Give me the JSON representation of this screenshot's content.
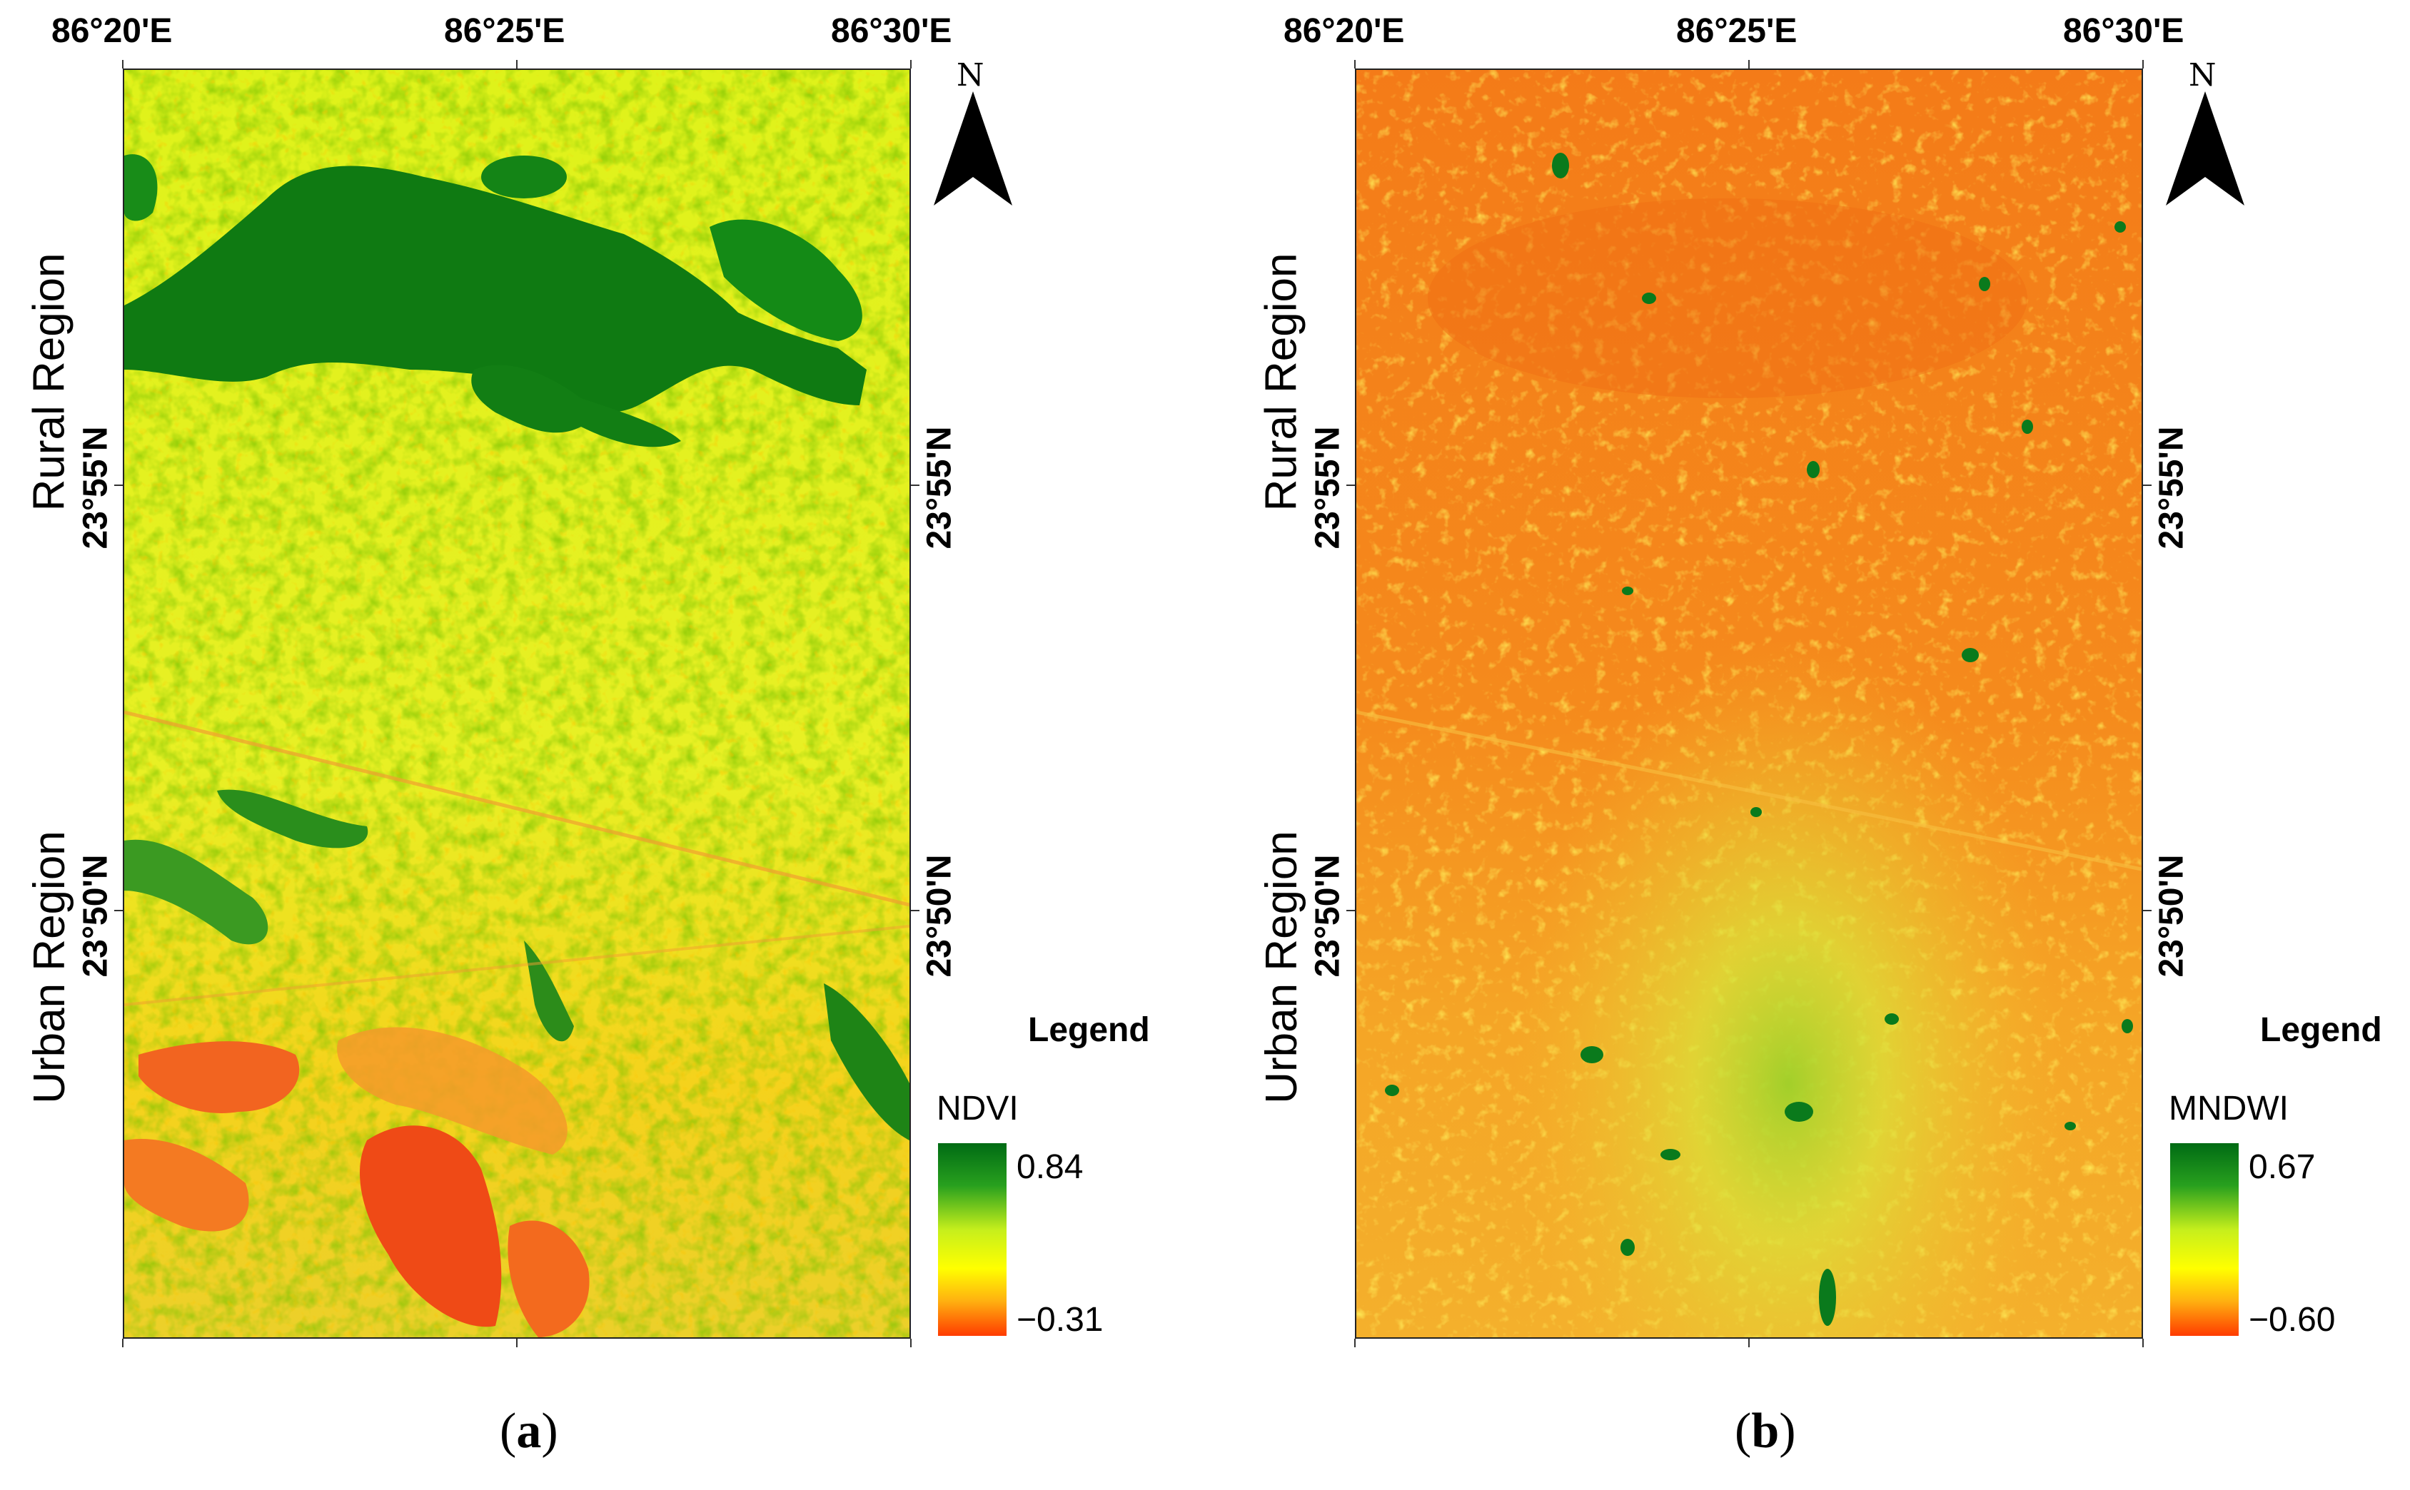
{
  "panels": [
    {
      "id": "a",
      "caption_open": "(",
      "caption_letter": "a",
      "caption_close": ")",
      "lon_labels": [
        "86°20'E",
        "86°25'E",
        "86°30'E"
      ],
      "lat_labels": [
        "23°55'N",
        "23°50'N"
      ],
      "region_labels": [
        "Rural Region",
        "Urban Region"
      ],
      "north_label": "N",
      "legend": {
        "title": "Legend",
        "variable": "NDVI",
        "max": "0.84",
        "min": "−0.31"
      },
      "colors": {
        "low": "#ff3b00",
        "mid": "#ffff00",
        "high": "#008000"
      }
    },
    {
      "id": "b",
      "caption_open": "(",
      "caption_letter": "b",
      "caption_close": ")",
      "lon_labels": [
        "86°20'E",
        "86°25'E",
        "86°30'E"
      ],
      "lat_labels": [
        "23°55'N",
        "23°50'N"
      ],
      "region_labels": [
        "Rural Region",
        "Urban Region"
      ],
      "north_label": "N",
      "legend": {
        "title": "Legend",
        "variable": "MNDWI",
        "max": "0.67",
        "min": "−0.60"
      },
      "colors": {
        "low": "#ff3b00",
        "mid": "#ffff00",
        "high": "#008000"
      }
    }
  ]
}
